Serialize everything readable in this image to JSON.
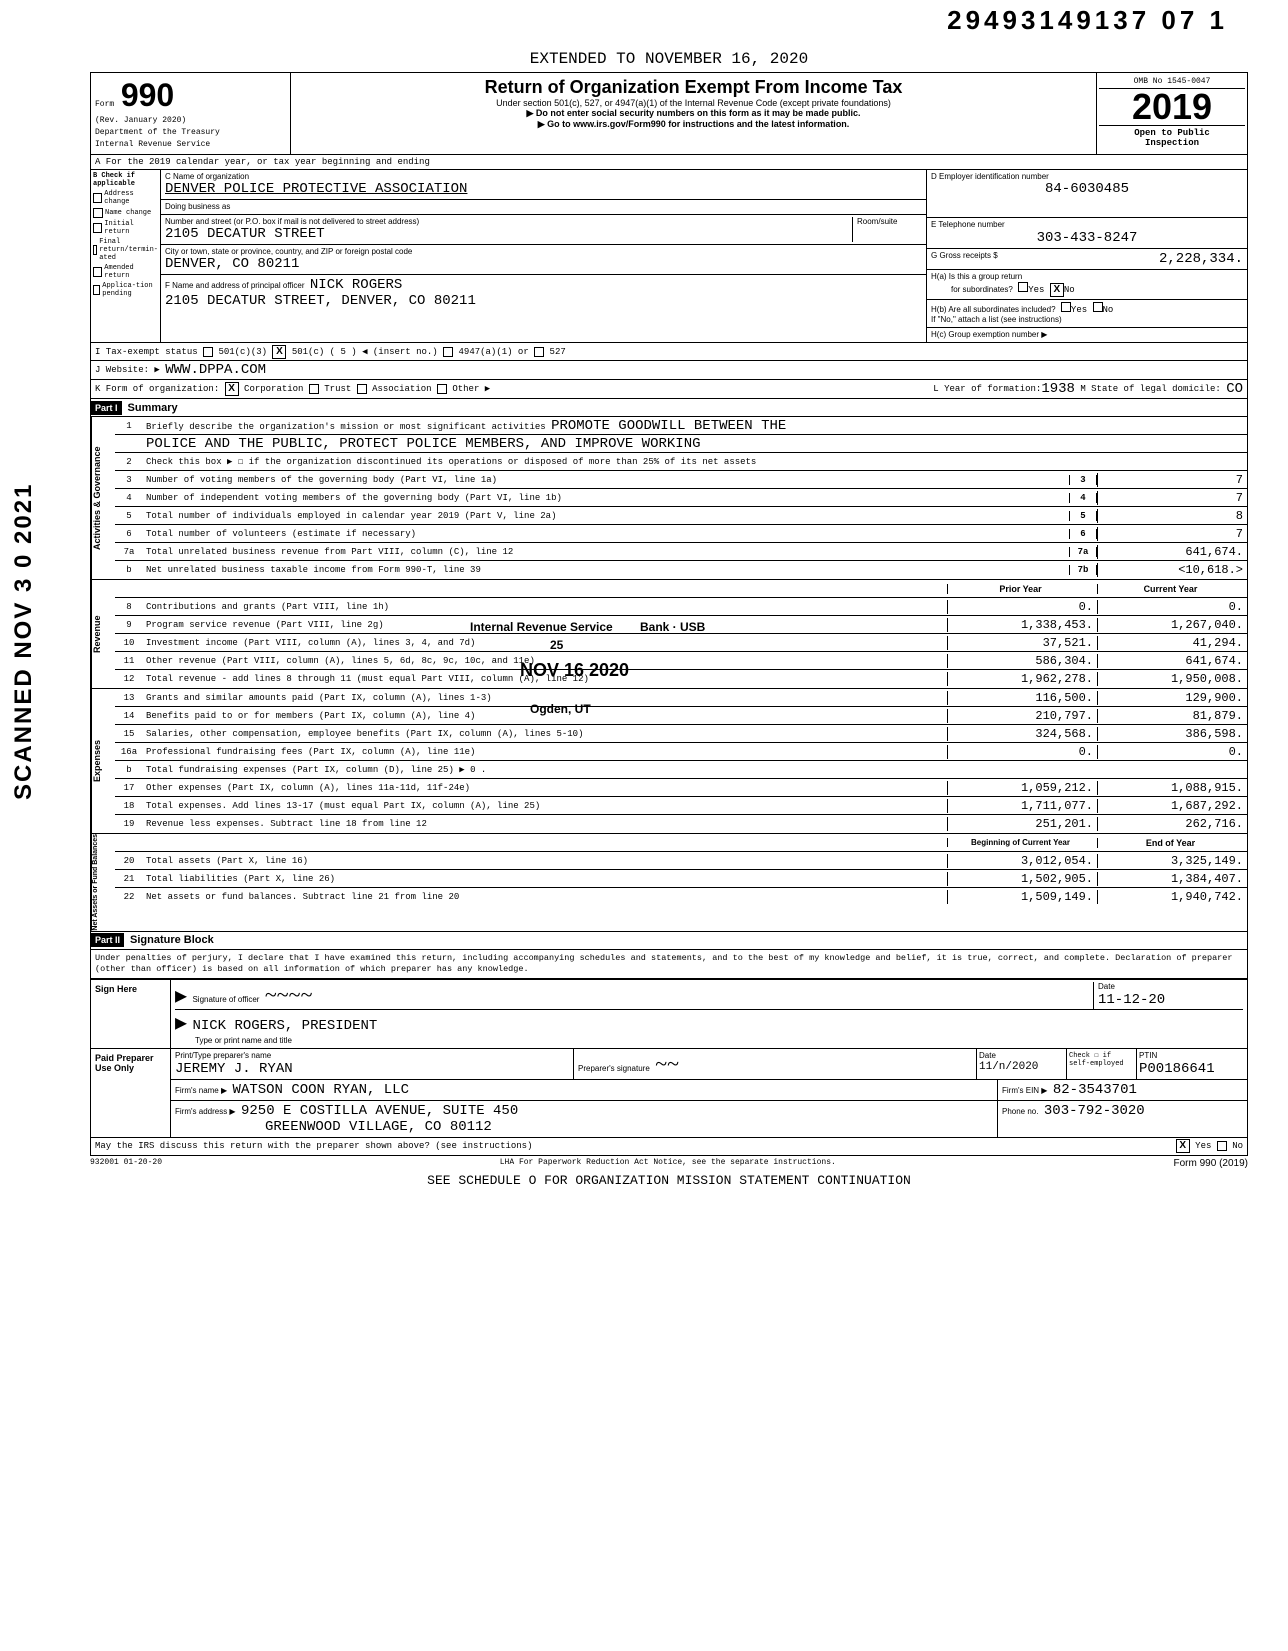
{
  "doc_id": "29493149137 07  1",
  "extended_to": "EXTENDED TO NOVEMBER 16, 2020",
  "form": {
    "number": "990",
    "prefix": "Form",
    "rev": "(Rev. January 2020)",
    "dept": "Department of the Treasury",
    "irs": "Internal Revenue Service",
    "title": "Return of Organization Exempt From Income Tax",
    "subtitle": "Under section 501(c), 527, or 4947(a)(1) of the Internal Revenue Code (except private foundations)",
    "note1": "▶ Do not enter social security numbers on this form as it may be made public.",
    "note2": "▶ Go to www.irs.gov/Form990 for instructions and the latest information.",
    "omb": "OMB No 1545-0047",
    "year": "2019",
    "open": "Open to Public",
    "inspection": "Inspection"
  },
  "row_a": "A  For the 2019 calendar year, or tax year beginning                                    and ending",
  "col_b_label": "B  Check if applicable",
  "col_b_items": [
    "Address change",
    "Name change",
    "Initial return",
    "Final return/termin-ated",
    "Amended return",
    "Applica-tion pending"
  ],
  "box_c": {
    "label": "C Name of organization",
    "name": "DENVER POLICE PROTECTIVE ASSOCIATION",
    "dba_label": "Doing business as",
    "street_label": "Number and street (or P.O. box if mail is not delivered to street address)",
    "street": "2105 DECATUR STREET",
    "room_label": "Room/suite",
    "city_label": "City or town, state or province, country, and ZIP or foreign postal code",
    "city": "DENVER, CO   80211",
    "officer_label": "F Name and address of principal officer",
    "officer": "NICK ROGERS",
    "officer_addr": "2105 DECATUR STREET, DENVER, CO   80211"
  },
  "box_d": {
    "label": "D  Employer identification number",
    "value": "84-6030485"
  },
  "box_e": {
    "label": "E  Telephone number",
    "value": "303-433-8247"
  },
  "box_g": {
    "label": "G  Gross receipts $",
    "value": "2,228,334."
  },
  "box_h": {
    "a_label": "H(a) Is this a group return",
    "a_sub": "for subordinates?",
    "a_yes": "Yes",
    "a_no_x": "X",
    "a_no": "No",
    "b_label": "H(b) Are all subordinates included?",
    "b_yes": "Yes",
    "b_no": "No",
    "b_note": "If \"No,\" attach a list (see instructions)",
    "c_label": "H(c) Group exemption number ▶"
  },
  "line_i": {
    "label": "I  Tax-exempt status",
    "c3": "501(c)(3)",
    "cx": "X",
    "cn": "501(c) (    5    ) ◀ (insert no.)",
    "a1": "4947(a)(1) or",
    "527": "527"
  },
  "line_j": {
    "label": "J  Website: ▶",
    "value": "WWW.DPPA.COM"
  },
  "line_k": {
    "label": "K  Form of organization:",
    "corp_x": "X",
    "corp": "Corporation",
    "trust": "Trust",
    "assoc": "Association",
    "other": "Other ▶"
  },
  "line_l": {
    "label": "L  Year of formation:",
    "value": "1938",
    "m_label": "M State of legal domicile:",
    "m_value": "CO"
  },
  "part1": {
    "header": "Part I",
    "title": "Summary"
  },
  "mission": {
    "num": "1",
    "label": "Briefly describe the organization's mission or most significant activities",
    "text1": "PROMOTE GOODWILL BETWEEN THE",
    "text2": "POLICE AND THE PUBLIC, PROTECT POLICE MEMBERS, AND IMPROVE WORKING"
  },
  "line2": {
    "num": "2",
    "label": "Check this box ▶ ☐ if the organization discontinued its operations or disposed of more than 25% of its net assets"
  },
  "gov_lines": [
    {
      "num": "3",
      "label": "Number of voting members of the governing body (Part VI, line 1a)",
      "box": "3",
      "val": "7"
    },
    {
      "num": "4",
      "label": "Number of independent voting members of the governing body (Part VI, line 1b)",
      "box": "4",
      "val": "7"
    },
    {
      "num": "5",
      "label": "Total number of individuals employed in calendar year 2019 (Part V, line 2a)",
      "box": "5",
      "val": "8"
    },
    {
      "num": "6",
      "label": "Total number of volunteers (estimate if necessary)",
      "box": "6",
      "val": "7"
    },
    {
      "num": "7a",
      "label": "Total unrelated business revenue from Part VIII, column (C), line 12",
      "box": "7a",
      "val": "641,674."
    },
    {
      "num": "b",
      "label": "Net unrelated business taxable income from Form 990-T, line 39",
      "box": "7b",
      "val": "<10,618.>"
    }
  ],
  "col_headers": {
    "prior": "Prior Year",
    "current": "Current Year"
  },
  "rev_lines": [
    {
      "num": "8",
      "label": "Contributions and grants (Part VIII, line 1h)",
      "prior": "0.",
      "curr": "0."
    },
    {
      "num": "9",
      "label": "Program service revenue (Part VIII, line 2g)",
      "prior": "1,338,453.",
      "curr": "1,267,040."
    },
    {
      "num": "10",
      "label": "Investment income (Part VIII, column (A), lines 3, 4, and 7d)",
      "prior": "37,521.",
      "curr": "41,294."
    },
    {
      "num": "11",
      "label": "Other revenue (Part VIII, column (A), lines 5, 6d, 8c, 9c, 10c, and 11e)",
      "prior": "586,304.",
      "curr": "641,674."
    },
    {
      "num": "12",
      "label": "Total revenue - add lines 8 through 11 (must equal Part VIII, column (A), line 12)",
      "prior": "1,962,278.",
      "curr": "1,950,008."
    }
  ],
  "exp_lines": [
    {
      "num": "13",
      "label": "Grants and similar amounts paid (Part IX, column (A), lines 1-3)",
      "prior": "116,500.",
      "curr": "129,900."
    },
    {
      "num": "14",
      "label": "Benefits paid to or for members (Part IX, column (A), line 4)",
      "prior": "210,797.",
      "curr": "81,879."
    },
    {
      "num": "15",
      "label": "Salaries, other compensation, employee benefits (Part IX, column (A), lines 5-10)",
      "prior": "324,568.",
      "curr": "386,598."
    },
    {
      "num": "16a",
      "label": "Professional fundraising fees (Part IX, column (A), line 11e)",
      "prior": "0.",
      "curr": "0."
    },
    {
      "num": "b",
      "label": "Total fundraising expenses (Part IX, column (D), line 25)   ▶                              0 .",
      "prior": "",
      "curr": "",
      "shaded": true
    },
    {
      "num": "17",
      "label": "Other expenses (Part IX, column (A), lines 11a-11d, 11f-24e)",
      "prior": "1,059,212.",
      "curr": "1,088,915."
    },
    {
      "num": "18",
      "label": "Total expenses. Add lines 13-17 (must equal Part IX, column (A), line 25)",
      "prior": "1,711,077.",
      "curr": "1,687,292."
    },
    {
      "num": "19",
      "label": "Revenue less expenses. Subtract line 18 from line 12",
      "prior": "251,201.",
      "curr": "262,716."
    }
  ],
  "bal_headers": {
    "begin": "Beginning of Current Year",
    "end": "End of Year"
  },
  "bal_lines": [
    {
      "num": "20",
      "label": "Total assets (Part X, line 16)",
      "prior": "3,012,054.",
      "curr": "3,325,149."
    },
    {
      "num": "21",
      "label": "Total liabilities (Part X, line 26)",
      "prior": "1,502,905.",
      "curr": "1,384,407."
    },
    {
      "num": "22",
      "label": "Net assets or fund balances. Subtract line 21 from line 20",
      "prior": "1,509,149.",
      "curr": "1,940,742."
    }
  ],
  "part2": {
    "header": "Part II",
    "title": "Signature Block"
  },
  "penalty": "Under penalties of perjury, I declare that I have examined this return, including accompanying schedules and statements, and to the best of my knowledge and belief, it is true, correct, and complete. Declaration of preparer (other than officer) is based on all information of which preparer has any knowledge.",
  "sign": {
    "here_label": "Sign Here",
    "sig_label": "Signature of officer",
    "date_label": "Date",
    "date": "11-12-20",
    "name_label": "Type or print name and title",
    "name": "NICK ROGERS, PRESIDENT"
  },
  "preparer": {
    "label": "Paid Preparer Use Only",
    "name_label": "Print/Type preparer's name",
    "name": "JEREMY J. RYAN",
    "sig_label": "Preparer's signature",
    "date_label": "Date",
    "date": "11/n/2020",
    "check_label": "Check ☐ if self-employed",
    "ptin_label": "PTIN",
    "ptin": "P00186641",
    "firm_label": "Firm's name ▶",
    "firm": "WATSON COON RYAN, LLC",
    "ein_label": "Firm's EIN ▶",
    "ein": "82-3543701",
    "addr_label": "Firm's address ▶",
    "addr1": "9250 E COSTILLA AVENUE, SUITE 450",
    "addr2": "GREENWOOD VILLAGE, CO 80112",
    "phone_label": "Phone no.",
    "phone": "303-792-3020"
  },
  "may_irs": {
    "label": "May the IRS discuss this return with the preparer shown above? (see instructions)",
    "yes_x": "X",
    "yes": "Yes",
    "no": "No"
  },
  "footer": {
    "code": "932001 01-20-20",
    "lha": "LHA  For Paperwork Reduction Act Notice, see the separate instructions.",
    "form": "Form 990 (2019)"
  },
  "sched_o": "SEE SCHEDULE O FOR ORGANIZATION MISSION STATEMENT CONTINUATION",
  "stamps": {
    "irs": "Internal Revenue Service",
    "bank": "Bank · USB",
    "n25": "25",
    "date": "NOV 16 2020",
    "ogden": "Ogden, UT"
  },
  "vertical": "SCANNED NOV 3 0 2021",
  "side_labels": {
    "gov": "Activities & Governance",
    "rev": "Revenue",
    "exp": "Expenses",
    "bal": "Net Assets or Fund Balances"
  }
}
